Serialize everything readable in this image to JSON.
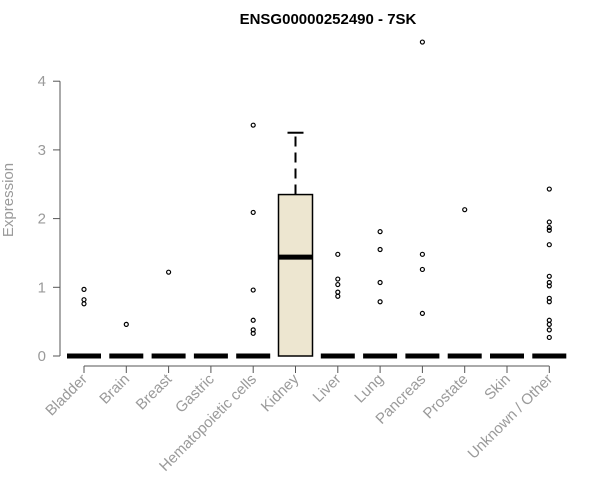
{
  "chart_data": {
    "type": "box",
    "title": "ENSG00000252490 - 7SK",
    "xlabel": "",
    "ylabel": "Expression",
    "ylim": [
      0,
      4.6
    ],
    "yticks": [
      0,
      1,
      2,
      3,
      4
    ],
    "grid": false,
    "box_fill": "#ede6d0",
    "colors": {
      "axis": "#555555",
      "text": "#9a9a9a",
      "marks": "#000000"
    },
    "categories": [
      "Bladder",
      "Brain",
      "Breast",
      "Gastric",
      "Hematopoietic cells",
      "Kidney",
      "Liver",
      "Lung",
      "Pancreas",
      "Prostate",
      "Skin",
      "Unknown / Other"
    ],
    "boxes": [
      {
        "category": "Bladder",
        "q1": 0,
        "median": 0,
        "q3": 0,
        "whisker_low": 0,
        "whisker_high": 0,
        "outliers": [
          0.76,
          0.82,
          0.97
        ]
      },
      {
        "category": "Brain",
        "q1": 0,
        "median": 0,
        "q3": 0,
        "whisker_low": 0,
        "whisker_high": 0,
        "outliers": [
          0.46
        ]
      },
      {
        "category": "Breast",
        "q1": 0,
        "median": 0,
        "q3": 0,
        "whisker_low": 0,
        "whisker_high": 0,
        "outliers": [
          1.22
        ]
      },
      {
        "category": "Gastric",
        "q1": 0,
        "median": 0,
        "q3": 0,
        "whisker_low": 0,
        "whisker_high": 0,
        "outliers": []
      },
      {
        "category": "Hematopoietic cells",
        "q1": 0,
        "median": 0,
        "q3": 0,
        "whisker_low": 0,
        "whisker_high": 0,
        "outliers": [
          0.33,
          0.38,
          0.52,
          0.96,
          2.09,
          3.36
        ]
      },
      {
        "category": "Kidney",
        "q1": 0,
        "median": 1.44,
        "q3": 2.35,
        "whisker_low": 0,
        "whisker_high": 3.25,
        "outliers": []
      },
      {
        "category": "Liver",
        "q1": 0,
        "median": 0,
        "q3": 0,
        "whisker_low": 0,
        "whisker_high": 0,
        "outliers": [
          0.87,
          0.93,
          1.04,
          1.12,
          1.48
        ]
      },
      {
        "category": "Lung",
        "q1": 0,
        "median": 0,
        "q3": 0,
        "whisker_low": 0,
        "whisker_high": 0,
        "outliers": [
          0.79,
          1.07,
          1.55,
          1.81
        ]
      },
      {
        "category": "Pancreas",
        "q1": 0,
        "median": 0,
        "q3": 0,
        "whisker_low": 0,
        "whisker_high": 0,
        "outliers": [
          0.62,
          1.26,
          1.48,
          4.57
        ]
      },
      {
        "category": "Prostate",
        "q1": 0,
        "median": 0,
        "q3": 0,
        "whisker_low": 0,
        "whisker_high": 0,
        "outliers": [
          2.13
        ]
      },
      {
        "category": "Skin",
        "q1": 0,
        "median": 0,
        "q3": 0,
        "whisker_low": 0,
        "whisker_high": 0,
        "outliers": []
      },
      {
        "category": "Unknown / Other",
        "q1": 0,
        "median": 0,
        "q3": 0,
        "whisker_low": 0,
        "whisker_high": 0,
        "outliers": [
          0.27,
          0.38,
          0.46,
          0.52,
          0.79,
          0.84,
          1.02,
          1.07,
          1.16,
          1.62,
          1.83,
          1.87,
          1.95,
          2.43
        ]
      }
    ]
  }
}
